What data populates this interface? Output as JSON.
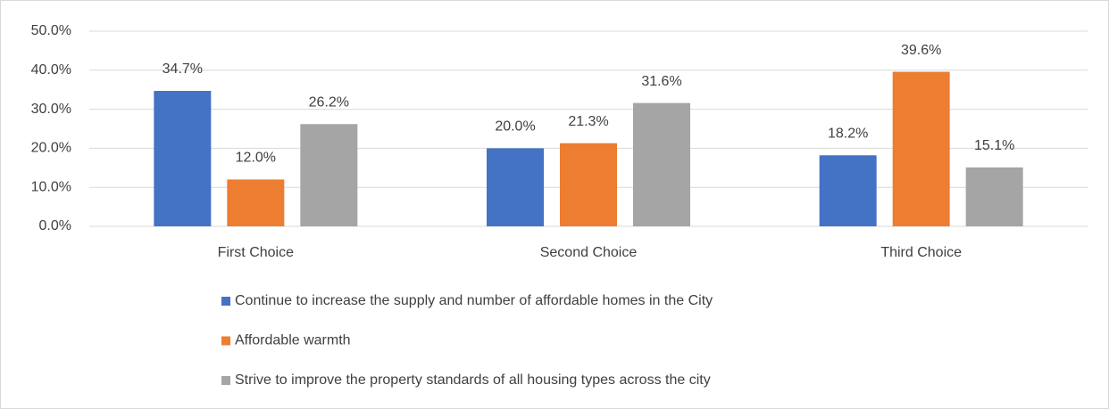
{
  "chart_data": {
    "type": "bar",
    "categories": [
      "First Choice",
      "Second Choice",
      "Third Choice"
    ],
    "series": [
      {
        "name": "Continue to increase the supply and number of affordable homes in the City",
        "color": "#4472c4",
        "values": [
          34.7,
          20.0,
          18.2
        ],
        "value_labels": [
          "34.7%",
          "20.0%",
          "18.2%"
        ]
      },
      {
        "name": "Affordable warmth",
        "color": "#ed7d31",
        "values": [
          12.0,
          21.3,
          39.6
        ],
        "value_labels": [
          "12.0%",
          "21.3%",
          "39.6%"
        ]
      },
      {
        "name": "Strive to improve the property standards of all housing types across the city",
        "color": "#a5a5a5",
        "values": [
          26.2,
          31.6,
          15.1
        ],
        "value_labels": [
          "26.2%",
          "31.6%",
          "15.1%"
        ]
      }
    ],
    "ylim": [
      0,
      50
    ],
    "yticks": [
      {
        "value": 0,
        "label": "0.0%"
      },
      {
        "value": 10,
        "label": "10.0%"
      },
      {
        "value": 20,
        "label": "20.0%"
      },
      {
        "value": 30,
        "label": "30.0%"
      },
      {
        "value": 40,
        "label": "40.0%"
      },
      {
        "value": 50,
        "label": "50.0%"
      }
    ],
    "grid": true,
    "legend": "bottom"
  }
}
